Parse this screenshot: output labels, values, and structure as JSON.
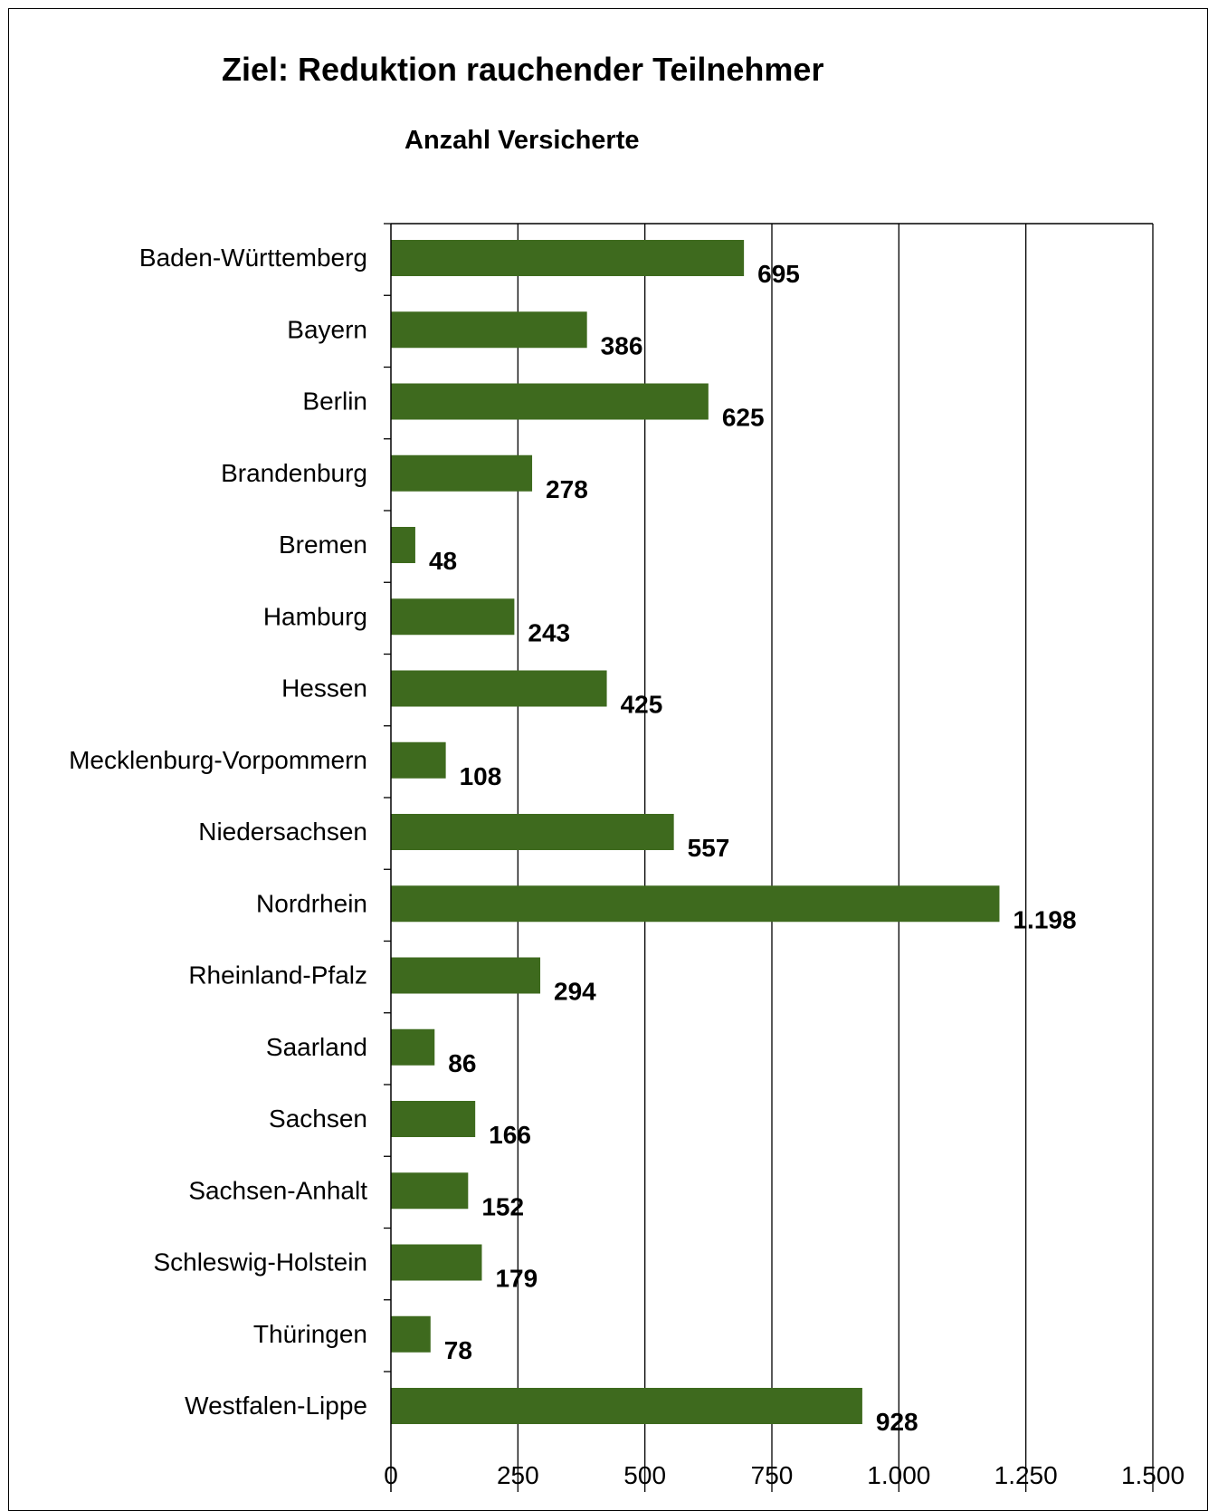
{
  "chart_data": {
    "type": "bar",
    "orientation": "horizontal",
    "title": "Ziel: Reduktion rauchender Teilnehmer",
    "subtitle": "Anzahl Versicherte",
    "categories": [
      "Baden-Württemberg",
      "Bayern",
      "Berlin",
      "Brandenburg",
      "Bremen",
      "Hamburg",
      "Hessen",
      "Mecklenburg-Vorpommern",
      "Niedersachsen",
      "Nordrhein",
      "Rheinland-Pfalz",
      "Saarland",
      "Sachsen",
      "Sachsen-Anhalt",
      "Schleswig-Holstein",
      "Thüringen",
      "Westfalen-Lippe"
    ],
    "values": [
      695,
      386,
      625,
      278,
      48,
      243,
      425,
      108,
      557,
      1198,
      294,
      86,
      166,
      152,
      179,
      78,
      928
    ],
    "value_labels": [
      "695",
      "386",
      "625",
      "278",
      "48",
      "243",
      "425",
      "108",
      "557",
      "1.198",
      "294",
      "86",
      "166",
      "152",
      "179",
      "78",
      "928"
    ],
    "xlim": [
      0,
      1500
    ],
    "xticks": [
      0,
      250,
      500,
      750,
      1000,
      1250,
      1500
    ],
    "xtick_labels": [
      "0",
      "250",
      "500",
      "750",
      "1.000",
      "1.250",
      "1.500"
    ],
    "grid": "vertical",
    "bar_color": "#3e6a1e"
  }
}
